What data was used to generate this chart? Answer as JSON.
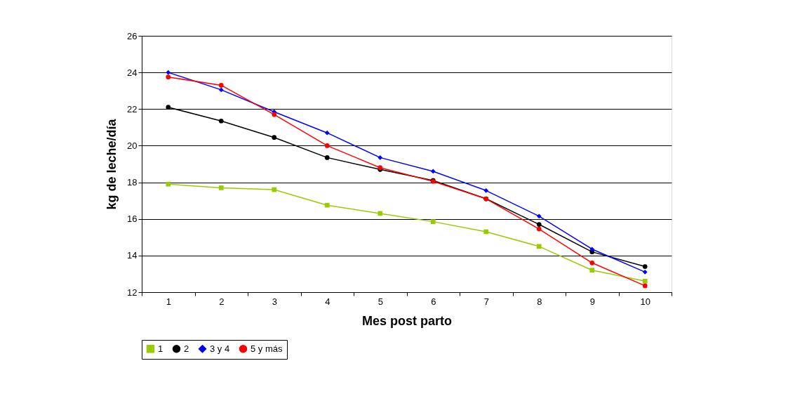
{
  "chart_data": {
    "type": "line",
    "xlabel": "Mes post parto",
    "ylabel": "kg de leche/día",
    "categories": [
      "1",
      "2",
      "3",
      "4",
      "5",
      "6",
      "7",
      "8",
      "9",
      "10"
    ],
    "series": [
      {
        "name": "1",
        "color": "#99cc00",
        "marker": "square",
        "values": [
          17.9,
          17.7,
          17.6,
          16.75,
          16.3,
          15.85,
          15.3,
          14.5,
          13.2,
          12.6
        ]
      },
      {
        "name": "2",
        "color": "#000000",
        "marker": "circle",
        "values": [
          22.1,
          21.35,
          20.45,
          19.35,
          18.7,
          18.1,
          17.1,
          15.7,
          14.2,
          13.4
        ]
      },
      {
        "name": "3 y 4",
        "color": "#0000ff",
        "marker": "diamond",
        "values": [
          24.0,
          23.05,
          21.85,
          20.7,
          19.35,
          18.6,
          17.55,
          16.15,
          14.35,
          13.1
        ]
      },
      {
        "name": "5 y más",
        "color": "#ff0000",
        "marker": "circle",
        "values": [
          23.75,
          23.3,
          21.7,
          20.0,
          18.8,
          18.05,
          17.1,
          15.45,
          13.6,
          12.35
        ]
      }
    ],
    "ylim": [
      12,
      26
    ],
    "yticks": [
      12,
      14,
      16,
      18,
      20,
      22,
      24,
      26
    ],
    "grid": "y",
    "legend": "bottom",
    "line_style": "solid"
  }
}
